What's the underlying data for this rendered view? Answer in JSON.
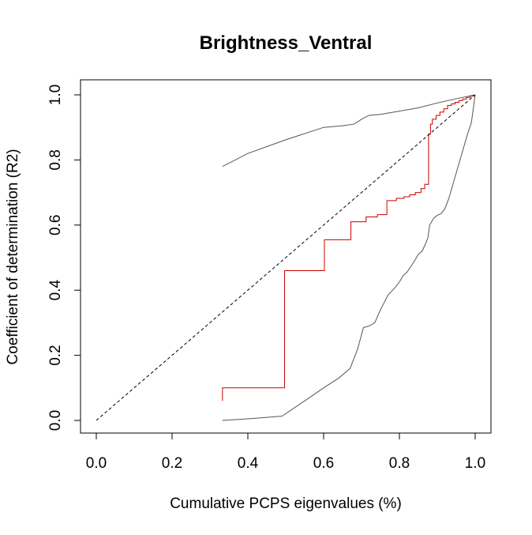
{
  "chart_data": {
    "type": "line",
    "title": "Brightness_Ventral",
    "xlabel": "Cumulative PCPS eigenvalues (%)",
    "ylabel": "Coefficient of determination (R2)",
    "xlim": [
      0.0,
      1.0
    ],
    "ylim": [
      0.0,
      1.0
    ],
    "x_ticks": [
      "0.0",
      "0.2",
      "0.4",
      "0.6",
      "0.8",
      "1.0"
    ],
    "y_ticks": [
      "0.0",
      "0.2",
      "0.4",
      "0.6",
      "0.8",
      "1.0"
    ],
    "grid": false,
    "legend": "none",
    "series": [
      {
        "color": "#cc0000",
        "style": "step",
        "x": [
          0.333,
          0.333,
          0.497,
          0.602,
          0.672,
          0.712,
          0.742,
          0.767,
          0.792,
          0.812,
          0.827,
          0.842,
          0.857,
          0.867,
          0.877,
          0.882,
          0.887,
          0.897,
          0.907,
          0.917,
          0.927,
          0.937,
          0.947,
          0.957,
          0.967,
          0.977,
          0.987,
          0.997
        ],
        "y": [
          0.06,
          0.1,
          0.46,
          0.555,
          0.61,
          0.625,
          0.632,
          0.675,
          0.682,
          0.687,
          0.693,
          0.7,
          0.712,
          0.725,
          0.88,
          0.91,
          0.925,
          0.937,
          0.947,
          0.957,
          0.967,
          0.972,
          0.977,
          0.982,
          0.987,
          0.992,
          0.996,
          1.0
        ]
      },
      {
        "color": "#555555",
        "style": "line",
        "x": [
          0.333,
          0.4,
          0.5,
          0.6,
          0.65,
          0.68,
          0.7,
          0.72,
          0.75,
          0.8,
          0.85,
          0.9,
          0.95,
          1.0
        ],
        "y": [
          0.78,
          0.82,
          0.862,
          0.9,
          0.905,
          0.91,
          0.925,
          0.937,
          0.94,
          0.95,
          0.96,
          0.975,
          0.988,
          1.0
        ]
      },
      {
        "color": "#555555",
        "style": "line",
        "x": [
          0.333,
          0.4,
          0.49,
          0.55,
          0.6,
          0.64,
          0.67,
          0.69,
          0.705,
          0.72,
          0.735,
          0.75,
          0.77,
          0.79,
          0.8,
          0.81,
          0.82,
          0.84,
          0.85,
          0.86,
          0.87,
          0.875,
          0.88,
          0.89,
          0.9,
          0.91,
          0.92,
          0.93,
          0.94,
          0.95,
          0.96,
          0.97,
          0.98,
          0.99,
          1.0
        ],
        "y": [
          0.0,
          0.005,
          0.013,
          0.06,
          0.1,
          0.13,
          0.16,
          0.22,
          0.285,
          0.29,
          0.3,
          0.34,
          0.385,
          0.41,
          0.425,
          0.445,
          0.455,
          0.49,
          0.51,
          0.52,
          0.545,
          0.56,
          0.6,
          0.62,
          0.63,
          0.635,
          0.65,
          0.68,
          0.72,
          0.76,
          0.8,
          0.84,
          0.88,
          0.915,
          1.0
        ]
      },
      {
        "color": "#000000",
        "style": "dashed",
        "x": [
          0.0,
          1.0
        ],
        "y": [
          0.0,
          1.0
        ]
      }
    ]
  }
}
